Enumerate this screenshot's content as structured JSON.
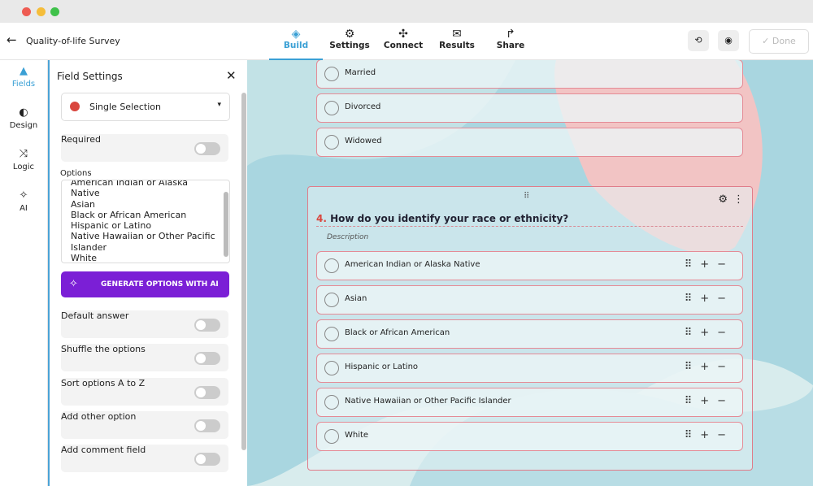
{
  "header": {
    "title": "Quality-of-life Survey",
    "tabs": [
      "Build",
      "Settings",
      "Connect",
      "Results",
      "Share"
    ],
    "done": "Done"
  },
  "rail": [
    "Fields",
    "Design",
    "Logic",
    "AI"
  ],
  "panel": {
    "title": "Field Settings",
    "field_type": "Single Selection",
    "required": "Required",
    "options_label": "Options",
    "options": [
      "American Indian or Alaska Native",
      "Asian",
      "Black or African American",
      "Hispanic or Latino",
      "Native Hawaiian or Other Pacific Islander",
      "White"
    ],
    "ai_button": "GENERATE OPTIONS WITH AI",
    "toggles": [
      "Default answer",
      "Shuffle the options",
      "Sort options A to Z",
      "Add other option",
      "Add comment field"
    ]
  },
  "canvas": {
    "previous_options": [
      "Married",
      "Divorced",
      "Widowed"
    ],
    "question": {
      "number": "4.",
      "text": "How do you identify your race or ethnicity?",
      "description": "Description",
      "options": [
        "American Indian or Alaska Native",
        "Asian",
        "Black or African American",
        "Hispanic or Latino",
        "Native Hawaiian or Other Pacific Islander",
        "White"
      ]
    }
  }
}
